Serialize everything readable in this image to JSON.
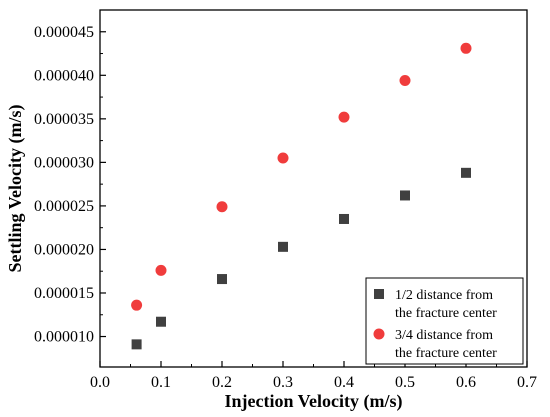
{
  "chart_data": {
    "type": "scatter",
    "xlabel": "Injection Velocity  (m/s)",
    "ylabel": "Settling Velocity (m/s)",
    "xlim": [
      0.0,
      0.7
    ],
    "ylim": [
      6.5e-06,
      4.75e-05
    ],
    "x_ticks": [
      "0.0",
      "0.1",
      "0.2",
      "0.3",
      "0.4",
      "0.5",
      "0.6",
      "0.7"
    ],
    "y_ticks": [
      "0.000010",
      "0.000015",
      "0.000020",
      "0.000025",
      "0.000030",
      "0.000035",
      "0.000040",
      "0.000045"
    ],
    "grid": false,
    "legend_position": "bottom-right",
    "series": [
      {
        "name": "1/2 distance from the fracture center",
        "legend_lines": [
          "1/2 distance from",
          "the fracture center"
        ],
        "marker": "square",
        "color": "#404040",
        "x": [
          0.06,
          0.1,
          0.2,
          0.3,
          0.4,
          0.5,
          0.6
        ],
        "y": [
          9.1e-06,
          1.17e-05,
          1.66e-05,
          2.03e-05,
          2.35e-05,
          2.62e-05,
          2.88e-05
        ]
      },
      {
        "name": "3/4 distance from the fracture center",
        "legend_lines": [
          "3/4 distance from",
          "the fracture center"
        ],
        "marker": "circle",
        "color": "#f03c3c",
        "x": [
          0.06,
          0.1,
          0.2,
          0.3,
          0.4,
          0.5,
          0.6
        ],
        "y": [
          1.36e-05,
          1.76e-05,
          2.49e-05,
          3.05e-05,
          3.52e-05,
          3.94e-05,
          4.31e-05
        ]
      }
    ]
  }
}
